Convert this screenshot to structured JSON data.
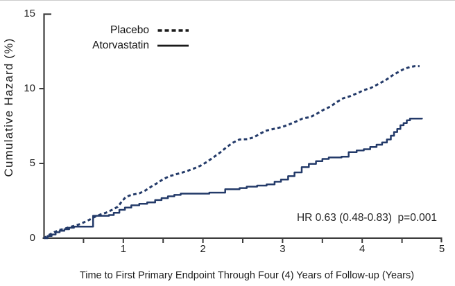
{
  "chart_data": {
    "type": "line",
    "title": "",
    "xlabel": "Time to First Primary Endpoint Through Four (4) Years of Follow-up (Years)",
    "ylabel": "Cumulative Hazard (%)",
    "xlim": [
      0,
      5
    ],
    "ylim": [
      0,
      15
    ],
    "grid": false,
    "axis_color": "#3d3d3d",
    "text_color": "#1c1c1c",
    "x_major_ticks": [
      {
        "value": 1,
        "label": "1"
      },
      {
        "value": 2,
        "label": "2"
      },
      {
        "value": 3,
        "label": "3"
      },
      {
        "value": 4,
        "label": "4"
      },
      {
        "value": 5,
        "label": "5"
      }
    ],
    "x_minor_ticks": [
      0.5,
      1.5,
      2.5,
      3.5,
      4.5
    ],
    "y_ticks": [
      {
        "value": 0,
        "label": "0"
      },
      {
        "value": 5,
        "label": "5"
      },
      {
        "value": 10,
        "label": "10"
      },
      {
        "value": 15,
        "label": "15"
      }
    ],
    "legend": {
      "position": "top-left-inside",
      "sample_color": "#1a1a1a",
      "entries": [
        {
          "name": "Placebo",
          "line_style": "dashed"
        },
        {
          "name": "Atorvastatin",
          "line_style": "solid"
        }
      ]
    },
    "annotation": {
      "text": "HR 0.63 (0.48-0.83)  p=0.001"
    },
    "series": [
      {
        "name": "Placebo",
        "style": "dashed",
        "interpolation": "linear",
        "color": "#233a69",
        "points": [
          [
            0,
            0
          ],
          [
            0.06,
            0.2
          ],
          [
            0.13,
            0.4
          ],
          [
            0.2,
            0.55
          ],
          [
            0.27,
            0.65
          ],
          [
            0.33,
            0.75
          ],
          [
            0.4,
            0.85
          ],
          [
            0.46,
            0.95
          ],
          [
            0.52,
            1.1
          ],
          [
            0.58,
            1.25
          ],
          [
            0.65,
            1.45
          ],
          [
            0.72,
            1.6
          ],
          [
            0.78,
            1.7
          ],
          [
            0.86,
            1.9
          ],
          [
            0.93,
            2.1
          ],
          [
            0.98,
            2.45
          ],
          [
            1.03,
            2.75
          ],
          [
            1.1,
            2.9
          ],
          [
            1.2,
            3.0
          ],
          [
            1.28,
            3.2
          ],
          [
            1.35,
            3.45
          ],
          [
            1.43,
            3.7
          ],
          [
            1.5,
            3.95
          ],
          [
            1.58,
            4.15
          ],
          [
            1.68,
            4.3
          ],
          [
            1.78,
            4.45
          ],
          [
            1.88,
            4.65
          ],
          [
            1.97,
            4.85
          ],
          [
            2.05,
            5.1
          ],
          [
            2.13,
            5.4
          ],
          [
            2.22,
            5.75
          ],
          [
            2.3,
            6.1
          ],
          [
            2.38,
            6.4
          ],
          [
            2.46,
            6.6
          ],
          [
            2.56,
            6.62
          ],
          [
            2.64,
            6.75
          ],
          [
            2.72,
            7.0
          ],
          [
            2.8,
            7.2
          ],
          [
            2.9,
            7.32
          ],
          [
            3.0,
            7.45
          ],
          [
            3.08,
            7.6
          ],
          [
            3.17,
            7.8
          ],
          [
            3.25,
            8.0
          ],
          [
            3.35,
            8.1
          ],
          [
            3.44,
            8.35
          ],
          [
            3.52,
            8.6
          ],
          [
            3.6,
            8.8
          ],
          [
            3.68,
            9.1
          ],
          [
            3.76,
            9.35
          ],
          [
            3.85,
            9.5
          ],
          [
            3.94,
            9.7
          ],
          [
            4.02,
            9.9
          ],
          [
            4.11,
            10.05
          ],
          [
            4.2,
            10.3
          ],
          [
            4.29,
            10.55
          ],
          [
            4.37,
            10.85
          ],
          [
            4.45,
            11.1
          ],
          [
            4.52,
            11.3
          ],
          [
            4.6,
            11.45
          ],
          [
            4.66,
            11.5
          ],
          [
            4.72,
            11.5
          ]
        ]
      },
      {
        "name": "Atorvastatin",
        "style": "solid",
        "interpolation": "step-after",
        "color": "#233a69",
        "points": [
          [
            0,
            0
          ],
          [
            0.05,
            0.15
          ],
          [
            0.1,
            0.25
          ],
          [
            0.15,
            0.4
          ],
          [
            0.2,
            0.5
          ],
          [
            0.26,
            0.6
          ],
          [
            0.32,
            0.7
          ],
          [
            0.38,
            0.78
          ],
          [
            0.62,
            1.5
          ],
          [
            0.82,
            1.55
          ],
          [
            0.88,
            1.7
          ],
          [
            0.95,
            1.9
          ],
          [
            1.02,
            2.05
          ],
          [
            1.1,
            2.2
          ],
          [
            1.2,
            2.3
          ],
          [
            1.3,
            2.4
          ],
          [
            1.4,
            2.55
          ],
          [
            1.48,
            2.68
          ],
          [
            1.56,
            2.8
          ],
          [
            1.64,
            2.9
          ],
          [
            1.72,
            2.98
          ],
          [
            2.08,
            3.05
          ],
          [
            2.28,
            3.28
          ],
          [
            2.46,
            3.35
          ],
          [
            2.55,
            3.45
          ],
          [
            2.68,
            3.52
          ],
          [
            2.8,
            3.6
          ],
          [
            2.9,
            3.78
          ],
          [
            2.98,
            3.92
          ],
          [
            3.07,
            4.15
          ],
          [
            3.15,
            4.4
          ],
          [
            3.24,
            4.75
          ],
          [
            3.33,
            4.97
          ],
          [
            3.42,
            5.15
          ],
          [
            3.5,
            5.3
          ],
          [
            3.58,
            5.4
          ],
          [
            3.74,
            5.45
          ],
          [
            3.83,
            5.75
          ],
          [
            3.93,
            5.87
          ],
          [
            4.02,
            5.95
          ],
          [
            4.1,
            6.1
          ],
          [
            4.18,
            6.25
          ],
          [
            4.25,
            6.4
          ],
          [
            4.31,
            6.6
          ],
          [
            4.36,
            6.85
          ],
          [
            4.4,
            7.1
          ],
          [
            4.44,
            7.3
          ],
          [
            4.48,
            7.55
          ],
          [
            4.52,
            7.7
          ],
          [
            4.56,
            7.88
          ],
          [
            4.6,
            8.0
          ],
          [
            4.75,
            8.05
          ]
        ]
      }
    ]
  }
}
